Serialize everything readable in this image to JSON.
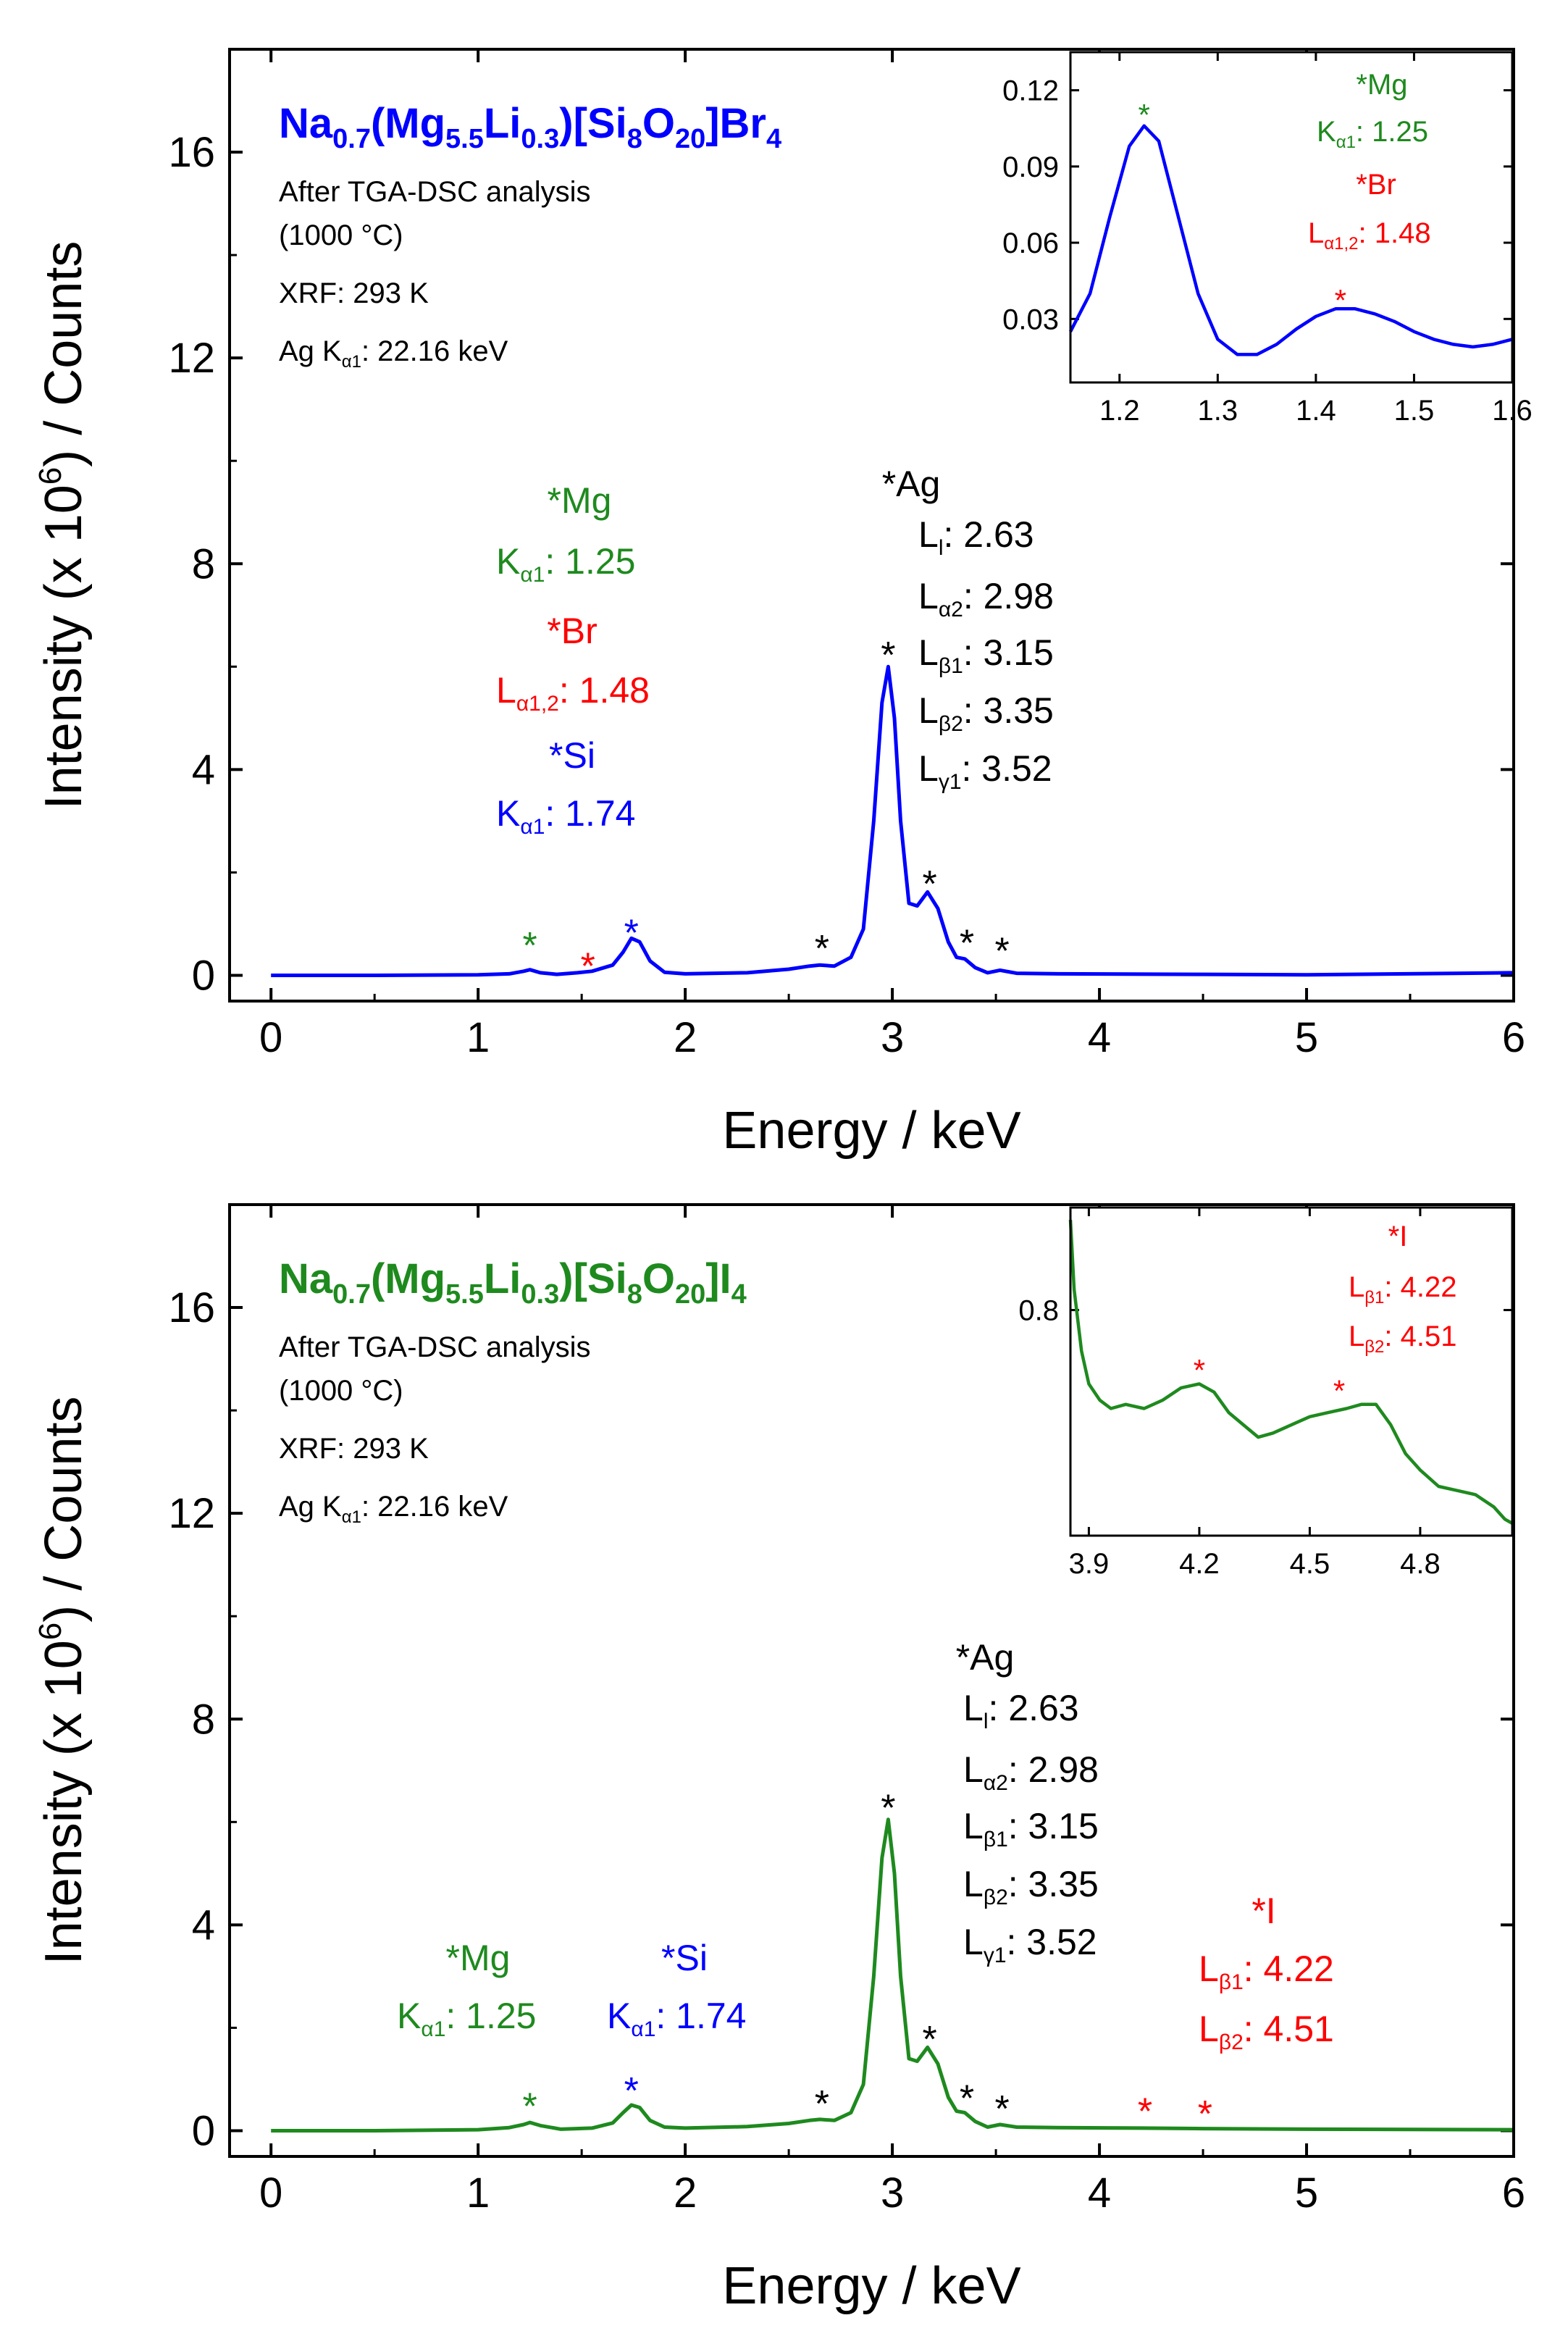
{
  "chart_data": [
    {
      "type": "line",
      "id": "top",
      "color": "#0000ff",
      "xlabel": "Energy / keV",
      "ylabel": "Intensity (x 10^6) / Counts",
      "xlim": [
        -0.2,
        6
      ],
      "ylim": [
        -0.5,
        18
      ],
      "xticks": [
        "0",
        "1",
        "2",
        "3",
        "4",
        "5",
        "6"
      ],
      "yticks": [
        "0",
        "4",
        "8",
        "12",
        "16"
      ],
      "formula": {
        "parts": [
          "Na",
          "0.7",
          "(Mg",
          "5.5",
          "Li",
          "0.3",
          ")[Si",
          "8",
          "O",
          "20",
          "]Br",
          "4"
        ]
      },
      "info": {
        "line1": "After TGA-DSC analysis",
        "line2": "(1000 °C)",
        "line3": "XRF: 293 K",
        "line4_main": "Ag K",
        "line4_sub": "α1",
        "line4_val": ": 22.16 keV"
      },
      "series": [
        {
          "name": "spectrum",
          "points": [
            [
              0,
              0
            ],
            [
              0.5,
              0.0
            ],
            [
              1.0,
              0.01
            ],
            [
              1.15,
              0.03
            ],
            [
              1.22,
              0.08
            ],
            [
              1.25,
              0.11
            ],
            [
              1.3,
              0.05
            ],
            [
              1.38,
              0.02
            ],
            [
              1.48,
              0.05
            ],
            [
              1.55,
              0.08
            ],
            [
              1.65,
              0.2
            ],
            [
              1.7,
              0.45
            ],
            [
              1.74,
              0.72
            ],
            [
              1.78,
              0.65
            ],
            [
              1.83,
              0.28
            ],
            [
              1.9,
              0.06
            ],
            [
              2.0,
              0.03
            ],
            [
              2.3,
              0.05
            ],
            [
              2.5,
              0.12
            ],
            [
              2.6,
              0.18
            ],
            [
              2.65,
              0.2
            ],
            [
              2.72,
              0.18
            ],
            [
              2.8,
              0.35
            ],
            [
              2.86,
              0.9
            ],
            [
              2.91,
              3.0
            ],
            [
              2.95,
              5.3
            ],
            [
              2.98,
              6.0
            ],
            [
              3.01,
              5.0
            ],
            [
              3.04,
              3.0
            ],
            [
              3.08,
              1.4
            ],
            [
              3.12,
              1.35
            ],
            [
              3.17,
              1.62
            ],
            [
              3.22,
              1.3
            ],
            [
              3.27,
              0.65
            ],
            [
              3.31,
              0.35
            ],
            [
              3.35,
              0.32
            ],
            [
              3.4,
              0.15
            ],
            [
              3.46,
              0.05
            ],
            [
              3.52,
              0.1
            ],
            [
              3.6,
              0.04
            ],
            [
              3.8,
              0.03
            ],
            [
              4.5,
              0.02
            ],
            [
              5.0,
              0.01
            ],
            [
              6.0,
              0.05
            ]
          ]
        }
      ],
      "labels": {
        "mg": {
          "title": "*Mg",
          "sym": "K",
          "sub": "α1",
          "val": ": 1.25",
          "color": "#1e8a1e"
        },
        "br": {
          "title": "*Br",
          "sym": "L",
          "sub": "α1,2",
          "val": ": 1.48",
          "color": "#ff0000"
        },
        "si": {
          "title": "*Si",
          "sym": "K",
          "sub": "α1",
          "val": ": 1.74",
          "color": "#0000ff"
        },
        "ag": {
          "title": "*Ag",
          "lines": [
            {
              "sym": "L",
              "sub": "l",
              "val": ": 2.63"
            },
            {
              "sym": "L",
              "sub": "α2",
              "val": ": 2.98"
            },
            {
              "sym": "L",
              "sub": "β1",
              "val": ": 3.15"
            },
            {
              "sym": "L",
              "sub": "β2",
              "val": ": 3.35"
            },
            {
              "sym": "L",
              "sub": "γ1",
              "val": ": 3.52"
            }
          ]
        }
      },
      "stars": [
        {
          "x": 1.25,
          "y": 0.75,
          "color": "#1e8a1e"
        },
        {
          "x": 1.53,
          "y": 0.35,
          "color": "#ff0000"
        },
        {
          "x": 1.74,
          "y": 1.0,
          "color": "#0000ff"
        },
        {
          "x": 2.66,
          "y": 0.7,
          "color": "#000000"
        },
        {
          "x": 2.98,
          "y": 6.4,
          "color": "#000000"
        },
        {
          "x": 3.18,
          "y": 1.95,
          "color": "#000000"
        },
        {
          "x": 3.36,
          "y": 0.8,
          "color": "#000000"
        },
        {
          "x": 3.53,
          "y": 0.65,
          "color": "#000000"
        }
      ],
      "inset": {
        "xlim": [
          1.15,
          1.6
        ],
        "ylim": [
          0.005,
          0.135
        ],
        "xticks": [
          "1.2",
          "1.3",
          "1.4",
          "1.5",
          "1.6"
        ],
        "yticks": [
          "0.03",
          "0.06",
          "0.09",
          "0.12"
        ],
        "points": [
          [
            1.15,
            0.025
          ],
          [
            1.17,
            0.04
          ],
          [
            1.19,
            0.07
          ],
          [
            1.21,
            0.098
          ],
          [
            1.225,
            0.106
          ],
          [
            1.24,
            0.1
          ],
          [
            1.26,
            0.07
          ],
          [
            1.28,
            0.04
          ],
          [
            1.3,
            0.022
          ],
          [
            1.32,
            0.016
          ],
          [
            1.34,
            0.016
          ],
          [
            1.36,
            0.02
          ],
          [
            1.38,
            0.026
          ],
          [
            1.4,
            0.031
          ],
          [
            1.42,
            0.034
          ],
          [
            1.44,
            0.034
          ],
          [
            1.46,
            0.032
          ],
          [
            1.48,
            0.029
          ],
          [
            1.5,
            0.025
          ],
          [
            1.52,
            0.022
          ],
          [
            1.54,
            0.02
          ],
          [
            1.56,
            0.019
          ],
          [
            1.58,
            0.02
          ],
          [
            1.6,
            0.022
          ]
        ],
        "labels": {
          "mg": {
            "title": "*Mg",
            "sym": "K",
            "sub": "α1",
            "val": ": 1.25",
            "color": "#1e8a1e"
          },
          "br": {
            "title": "*Br",
            "sym": "L",
            "sub": "α1,2",
            "val": ": 1.48",
            "color": "#ff0000"
          }
        },
        "stars": [
          {
            "x": 1.225,
            "y": 0.113,
            "color": "#1e8a1e"
          },
          {
            "x": 1.425,
            "y": 0.04,
            "color": "#ff0000"
          }
        ]
      }
    },
    {
      "type": "line",
      "id": "bottom",
      "color": "#1e8a1e",
      "xlabel": "Energy / keV",
      "ylabel": "Intensity (x 10^6) / Counts",
      "xlim": [
        -0.2,
        6
      ],
      "ylim": [
        -0.5,
        18
      ],
      "xticks": [
        "0",
        "1",
        "2",
        "3",
        "4",
        "5",
        "6"
      ],
      "yticks": [
        "0",
        "4",
        "8",
        "12",
        "16"
      ],
      "formula": {
        "parts": [
          "Na",
          "0.7",
          "(Mg",
          "5.5",
          "Li",
          "0.3",
          ")[Si",
          "8",
          "O",
          "20",
          "]I",
          "4"
        ]
      },
      "info": {
        "line1": "After TGA-DSC analysis",
        "line2": "(1000 °C)",
        "line3": "XRF: 293 K",
        "line4_main": "Ag K",
        "line4_sub": "α1",
        "line4_val": ": 22.16 keV"
      },
      "series": [
        {
          "name": "spectrum",
          "points": [
            [
              0,
              0
            ],
            [
              0.5,
              0.0
            ],
            [
              1.0,
              0.02
            ],
            [
              1.15,
              0.06
            ],
            [
              1.22,
              0.12
            ],
            [
              1.25,
              0.16
            ],
            [
              1.3,
              0.1
            ],
            [
              1.4,
              0.03
            ],
            [
              1.55,
              0.05
            ],
            [
              1.65,
              0.15
            ],
            [
              1.7,
              0.35
            ],
            [
              1.74,
              0.5
            ],
            [
              1.78,
              0.45
            ],
            [
              1.83,
              0.2
            ],
            [
              1.9,
              0.07
            ],
            [
              2.0,
              0.05
            ],
            [
              2.3,
              0.08
            ],
            [
              2.5,
              0.14
            ],
            [
              2.6,
              0.2
            ],
            [
              2.65,
              0.22
            ],
            [
              2.72,
              0.2
            ],
            [
              2.8,
              0.35
            ],
            [
              2.86,
              0.9
            ],
            [
              2.91,
              3.0
            ],
            [
              2.95,
              5.3
            ],
            [
              2.98,
              6.05
            ],
            [
              3.01,
              5.0
            ],
            [
              3.04,
              3.0
            ],
            [
              3.08,
              1.4
            ],
            [
              3.12,
              1.35
            ],
            [
              3.17,
              1.62
            ],
            [
              3.22,
              1.3
            ],
            [
              3.27,
              0.65
            ],
            [
              3.31,
              0.38
            ],
            [
              3.35,
              0.35
            ],
            [
              3.4,
              0.18
            ],
            [
              3.46,
              0.07
            ],
            [
              3.52,
              0.12
            ],
            [
              3.6,
              0.07
            ],
            [
              3.8,
              0.06
            ],
            [
              4.2,
              0.05
            ],
            [
              4.5,
              0.04
            ],
            [
              5.0,
              0.03
            ],
            [
              6.0,
              0.02
            ]
          ]
        }
      ],
      "labels": {
        "mg": {
          "title": "*Mg",
          "sym": "K",
          "sub": "α1",
          "val": ": 1.25",
          "color": "#1e8a1e"
        },
        "si": {
          "title": "*Si",
          "sym": "K",
          "sub": "α1",
          "val": ": 1.74",
          "color": "#0000ff"
        },
        "ag": {
          "title": "*Ag",
          "lines": [
            {
              "sym": "L",
              "sub": "l",
              "val": ": 2.63"
            },
            {
              "sym": "L",
              "sub": "α2",
              "val": ": 2.98"
            },
            {
              "sym": "L",
              "sub": "β1",
              "val": ": 3.15"
            },
            {
              "sym": "L",
              "sub": "β2",
              "val": ": 3.35"
            },
            {
              "sym": "L",
              "sub": "γ1",
              "val": ": 3.52"
            }
          ]
        },
        "i": {
          "title": "*I",
          "l1": {
            "sym": "L",
            "sub": "β1",
            "val": ": 4.22"
          },
          "l2": {
            "sym": "L",
            "sub": "β2",
            "val": ": 4.51"
          },
          "color": "#ff0000"
        }
      },
      "stars": [
        {
          "x": 1.25,
          "y": 0.65,
          "color": "#1e8a1e"
        },
        {
          "x": 1.74,
          "y": 0.95,
          "color": "#0000ff"
        },
        {
          "x": 2.66,
          "y": 0.7,
          "color": "#000000"
        },
        {
          "x": 2.98,
          "y": 6.45,
          "color": "#000000"
        },
        {
          "x": 3.18,
          "y": 1.95,
          "color": "#000000"
        },
        {
          "x": 3.36,
          "y": 0.8,
          "color": "#000000"
        },
        {
          "x": 3.53,
          "y": 0.6,
          "color": "#000000"
        },
        {
          "x": 4.22,
          "y": 0.55,
          "color": "#ff0000"
        },
        {
          "x": 4.51,
          "y": 0.5,
          "color": "#ff0000"
        }
      ],
      "inset": {
        "xlim": [
          3.85,
          5.05
        ],
        "ylim": [
          0.745,
          0.825
        ],
        "xticks": [
          "3.9",
          "4.2",
          "4.5",
          "4.8"
        ],
        "yticks": [
          "0.8"
        ],
        "points": [
          [
            3.85,
            0.822
          ],
          [
            3.86,
            0.805
          ],
          [
            3.88,
            0.79
          ],
          [
            3.9,
            0.782
          ],
          [
            3.93,
            0.778
          ],
          [
            3.96,
            0.776
          ],
          [
            4.0,
            0.777
          ],
          [
            4.05,
            0.776
          ],
          [
            4.1,
            0.778
          ],
          [
            4.15,
            0.781
          ],
          [
            4.2,
            0.782
          ],
          [
            4.24,
            0.78
          ],
          [
            4.28,
            0.775
          ],
          [
            4.32,
            0.772
          ],
          [
            4.36,
            0.769
          ],
          [
            4.4,
            0.77
          ],
          [
            4.45,
            0.772
          ],
          [
            4.5,
            0.774
          ],
          [
            4.55,
            0.775
          ],
          [
            4.6,
            0.776
          ],
          [
            4.64,
            0.777
          ],
          [
            4.68,
            0.777
          ],
          [
            4.72,
            0.772
          ],
          [
            4.76,
            0.765
          ],
          [
            4.8,
            0.761
          ],
          [
            4.85,
            0.757
          ],
          [
            4.9,
            0.756
          ],
          [
            4.95,
            0.755
          ],
          [
            5.0,
            0.752
          ],
          [
            5.03,
            0.749
          ],
          [
            5.05,
            0.748
          ]
        ],
        "labels": {
          "i": {
            "title": "*I",
            "l1": {
              "sym": "L",
              "sub": "β1",
              "val": ": 4.22"
            },
            "l2": {
              "sym": "L",
              "sub": "β2",
              "val": ": 4.51"
            },
            "color": "#ff0000"
          }
        },
        "stars": [
          {
            "x": 4.2,
            "y": 0.787,
            "color": "#ff0000"
          },
          {
            "x": 4.58,
            "y": 0.782,
            "color": "#ff0000"
          }
        ]
      }
    }
  ]
}
